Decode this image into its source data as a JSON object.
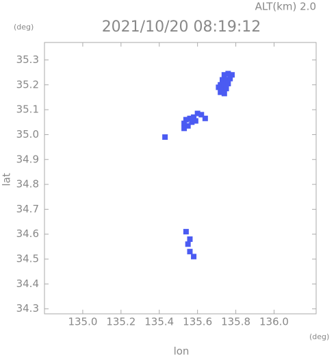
{
  "chart_data": {
    "type": "scatter",
    "title": "2021/10/20 08:19:12",
    "altitude_label": "ALT(km) 2.0",
    "y_unit": "(deg)",
    "x_unit": "(deg)",
    "xlabel": "lon",
    "ylabel": "lat",
    "color": "#4b5bf2",
    "x": [
      135.74,
      135.76,
      135.78,
      135.73,
      135.75,
      135.77,
      135.72,
      135.74,
      135.76,
      135.71,
      135.73,
      135.75,
      135.72,
      135.74,
      135.6,
      135.62,
      135.58,
      135.56,
      135.54,
      135.57,
      135.53,
      135.55,
      135.53,
      135.59,
      135.64,
      135.43,
      135.54,
      135.56,
      135.55,
      135.56,
      135.58
    ],
    "values": [
      35.24,
      35.245,
      35.24,
      35.22,
      35.22,
      35.225,
      35.2,
      35.2,
      35.205,
      35.19,
      35.18,
      35.185,
      35.17,
      35.165,
      35.085,
      35.08,
      35.07,
      35.065,
      35.06,
      35.05,
      35.045,
      35.035,
      35.025,
      35.055,
      35.065,
      34.99,
      34.61,
      34.58,
      34.56,
      34.53,
      34.51
    ],
    "xlim": [
      134.8,
      136.22
    ],
    "ylim": [
      34.28,
      35.37
    ],
    "xticks": [
      {
        "value": 135,
        "label": "135.0"
      },
      135.2,
      135.4,
      135.6,
      135.8,
      {
        "value": 136,
        "label": "136.0"
      }
    ],
    "yticks": [
      34.3,
      34.4,
      34.5,
      34.6,
      34.7,
      34.8,
      34.9,
      {
        "value": 35,
        "label": "35.0"
      },
      35.1,
      35.2,
      35.3
    ]
  }
}
